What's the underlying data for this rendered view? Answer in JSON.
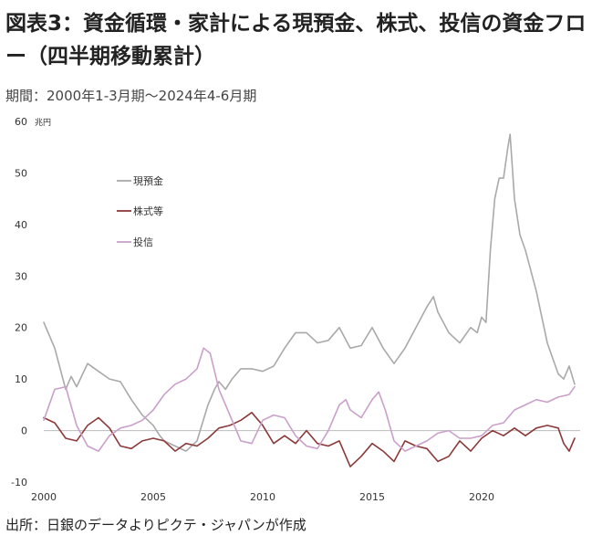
{
  "header": {
    "title": "図表3：資金循環・家計による現預金、株式、投信の資金フロー（四半期移動累計）",
    "period": "期間：2000年1-3月期～2024年4-6月期"
  },
  "footer": {
    "source": "出所：日銀のデータよりピクテ・ジャパンが作成"
  },
  "chart_data": {
    "type": "line",
    "ylabel_unit": "兆円",
    "ylim": [
      -10,
      60
    ],
    "y_ticks": [
      -10,
      0,
      10,
      20,
      30,
      40,
      50,
      60
    ],
    "x_ticks": [
      2000,
      2005,
      2010,
      2015,
      2020
    ],
    "xlim": [
      2000,
      2024.5
    ],
    "grid": false,
    "legend_position": "upper-left",
    "series": [
      {
        "name": "現預金",
        "color": "#a9a9a9",
        "points": [
          [
            2000,
            21
          ],
          [
            2000.5,
            16
          ],
          [
            2001,
            8
          ],
          [
            2001.25,
            10.5
          ],
          [
            2001.5,
            8.5
          ],
          [
            2002,
            13
          ],
          [
            2002.5,
            11.5
          ],
          [
            2003,
            10
          ],
          [
            2003.5,
            9.5
          ],
          [
            2004,
            6
          ],
          [
            2004.5,
            3
          ],
          [
            2005,
            1
          ],
          [
            2005.3,
            -1
          ],
          [
            2005.5,
            -2
          ],
          [
            2006,
            -3
          ],
          [
            2006.5,
            -4
          ],
          [
            2007,
            -2
          ],
          [
            2007.5,
            5
          ],
          [
            2007.8,
            8
          ],
          [
            2008,
            9.5
          ],
          [
            2008.3,
            8
          ],
          [
            2008.6,
            10
          ],
          [
            2009,
            12
          ],
          [
            2009.5,
            12
          ],
          [
            2010,
            11.5
          ],
          [
            2010.5,
            12.5
          ],
          [
            2011,
            16
          ],
          [
            2011.5,
            19
          ],
          [
            2012,
            19
          ],
          [
            2012.5,
            17
          ],
          [
            2013,
            17.5
          ],
          [
            2013.5,
            20
          ],
          [
            2014,
            16
          ],
          [
            2014.5,
            16.5
          ],
          [
            2015,
            20
          ],
          [
            2015.5,
            16
          ],
          [
            2016,
            13
          ],
          [
            2016.5,
            16
          ],
          [
            2017,
            20
          ],
          [
            2017.5,
            24
          ],
          [
            2017.8,
            26
          ],
          [
            2018,
            23
          ],
          [
            2018.5,
            19
          ],
          [
            2019,
            17
          ],
          [
            2019.5,
            20
          ],
          [
            2019.8,
            19
          ],
          [
            2020,
            22
          ],
          [
            2020.2,
            21
          ],
          [
            2020.4,
            35
          ],
          [
            2020.6,
            45
          ],
          [
            2020.8,
            49
          ],
          [
            2021,
            49
          ],
          [
            2021.2,
            55
          ],
          [
            2021.3,
            57.5
          ],
          [
            2021.5,
            45
          ],
          [
            2021.75,
            38
          ],
          [
            2022,
            35
          ],
          [
            2022.5,
            27
          ],
          [
            2023,
            17
          ],
          [
            2023.25,
            14
          ],
          [
            2023.5,
            11
          ],
          [
            2023.75,
            10
          ],
          [
            2024,
            12.5
          ],
          [
            2024.25,
            9
          ]
        ]
      },
      {
        "name": "株式等",
        "color": "#8b3a3a",
        "points": [
          [
            2000,
            2.5
          ],
          [
            2000.5,
            1.5
          ],
          [
            2001,
            -1.5
          ],
          [
            2001.5,
            -2
          ],
          [
            2002,
            1
          ],
          [
            2002.5,
            2.5
          ],
          [
            2003,
            0.5
          ],
          [
            2003.5,
            -3
          ],
          [
            2004,
            -3.5
          ],
          [
            2004.5,
            -2
          ],
          [
            2005,
            -1.5
          ],
          [
            2005.5,
            -2
          ],
          [
            2006,
            -4
          ],
          [
            2006.5,
            -2.5
          ],
          [
            2007,
            -3
          ],
          [
            2007.5,
            -1.5
          ],
          [
            2008,
            0.5
          ],
          [
            2008.5,
            1
          ],
          [
            2009,
            2
          ],
          [
            2009.5,
            3.5
          ],
          [
            2010,
            1
          ],
          [
            2010.5,
            -2.5
          ],
          [
            2011,
            -1
          ],
          [
            2011.5,
            -2.5
          ],
          [
            2012,
            0
          ],
          [
            2012.5,
            -2.5
          ],
          [
            2013,
            -3
          ],
          [
            2013.5,
            -2
          ],
          [
            2014,
            -7
          ],
          [
            2014.5,
            -5
          ],
          [
            2015,
            -2.5
          ],
          [
            2015.5,
            -4
          ],
          [
            2016,
            -6
          ],
          [
            2016.5,
            -2
          ],
          [
            2017,
            -3
          ],
          [
            2017.5,
            -3.5
          ],
          [
            2018,
            -6
          ],
          [
            2018.5,
            -5
          ],
          [
            2019,
            -2
          ],
          [
            2019.5,
            -4
          ],
          [
            2020,
            -1.5
          ],
          [
            2020.5,
            0
          ],
          [
            2021,
            -1
          ],
          [
            2021.5,
            0.5
          ],
          [
            2022,
            -1
          ],
          [
            2022.5,
            0.5
          ],
          [
            2023,
            1
          ],
          [
            2023.5,
            0.5
          ],
          [
            2023.75,
            -2.5
          ],
          [
            2024,
            -4
          ],
          [
            2024.25,
            -1.5
          ]
        ]
      },
      {
        "name": "投信",
        "color": "#c9a0c9",
        "points": [
          [
            2000,
            2
          ],
          [
            2000.5,
            8
          ],
          [
            2001,
            8.5
          ],
          [
            2001.5,
            1
          ],
          [
            2002,
            -3
          ],
          [
            2002.5,
            -4
          ],
          [
            2003,
            -1
          ],
          [
            2003.5,
            0.5
          ],
          [
            2004,
            1
          ],
          [
            2004.5,
            2
          ],
          [
            2005,
            4
          ],
          [
            2005.5,
            7
          ],
          [
            2006,
            9
          ],
          [
            2006.5,
            10
          ],
          [
            2007,
            12
          ],
          [
            2007.3,
            16
          ],
          [
            2007.6,
            15
          ],
          [
            2008,
            8
          ],
          [
            2008.5,
            3
          ],
          [
            2009,
            -2
          ],
          [
            2009.5,
            -2.5
          ],
          [
            2010,
            2
          ],
          [
            2010.5,
            3
          ],
          [
            2011,
            2.5
          ],
          [
            2011.5,
            -1
          ],
          [
            2012,
            -3
          ],
          [
            2012.5,
            -3.5
          ],
          [
            2013,
            0
          ],
          [
            2013.5,
            5
          ],
          [
            2013.8,
            6
          ],
          [
            2014,
            4
          ],
          [
            2014.5,
            2.5
          ],
          [
            2015,
            6
          ],
          [
            2015.3,
            7.5
          ],
          [
            2015.6,
            4
          ],
          [
            2016,
            -2
          ],
          [
            2016.5,
            -4
          ],
          [
            2017,
            -3
          ],
          [
            2017.5,
            -2
          ],
          [
            2018,
            -0.5
          ],
          [
            2018.5,
            0
          ],
          [
            2019,
            -1.5
          ],
          [
            2019.5,
            -1.5
          ],
          [
            2020,
            -1
          ],
          [
            2020.5,
            1
          ],
          [
            2021,
            1.5
          ],
          [
            2021.5,
            4
          ],
          [
            2022,
            5
          ],
          [
            2022.5,
            6
          ],
          [
            2023,
            5.5
          ],
          [
            2023.5,
            6.5
          ],
          [
            2024,
            7
          ],
          [
            2024.25,
            8.5
          ]
        ]
      }
    ]
  }
}
